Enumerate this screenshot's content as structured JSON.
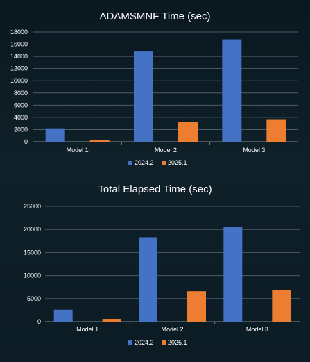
{
  "chart_data": [
    {
      "type": "bar",
      "title": "ADAMSMNF Time (sec)",
      "categories": [
        "Model 1",
        "Model 2",
        "Model 3"
      ],
      "series": [
        {
          "name": "2024.2",
          "values": [
            2200,
            14800,
            16800
          ]
        },
        {
          "name": "2025.1",
          "values": [
            300,
            3300,
            3700
          ]
        }
      ],
      "yticks": [
        "0",
        "2000",
        "4000",
        "6000",
        "8000",
        "10000",
        "12000",
        "14000",
        "16000",
        "18000"
      ],
      "ylim": [
        0,
        18000
      ],
      "ystep": 2000,
      "grid": true,
      "legend": "bottom"
    },
    {
      "type": "bar",
      "title": "Total Elapsed Time (sec)",
      "categories": [
        "Model 1",
        "Model 2",
        "Model 3"
      ],
      "series": [
        {
          "name": "2024.2",
          "values": [
            2600,
            18300,
            20500
          ]
        },
        {
          "name": "2025.1",
          "values": [
            600,
            6600,
            6900
          ]
        }
      ],
      "yticks": [
        "0",
        "5000",
        "10000",
        "15000",
        "20000",
        "25000"
      ],
      "ylim": [
        0,
        25000
      ],
      "ystep": 5000,
      "grid": true,
      "legend": "bottom"
    }
  ],
  "colors": {
    "series_1": "#4472c4",
    "series_2": "#ed7d31"
  }
}
